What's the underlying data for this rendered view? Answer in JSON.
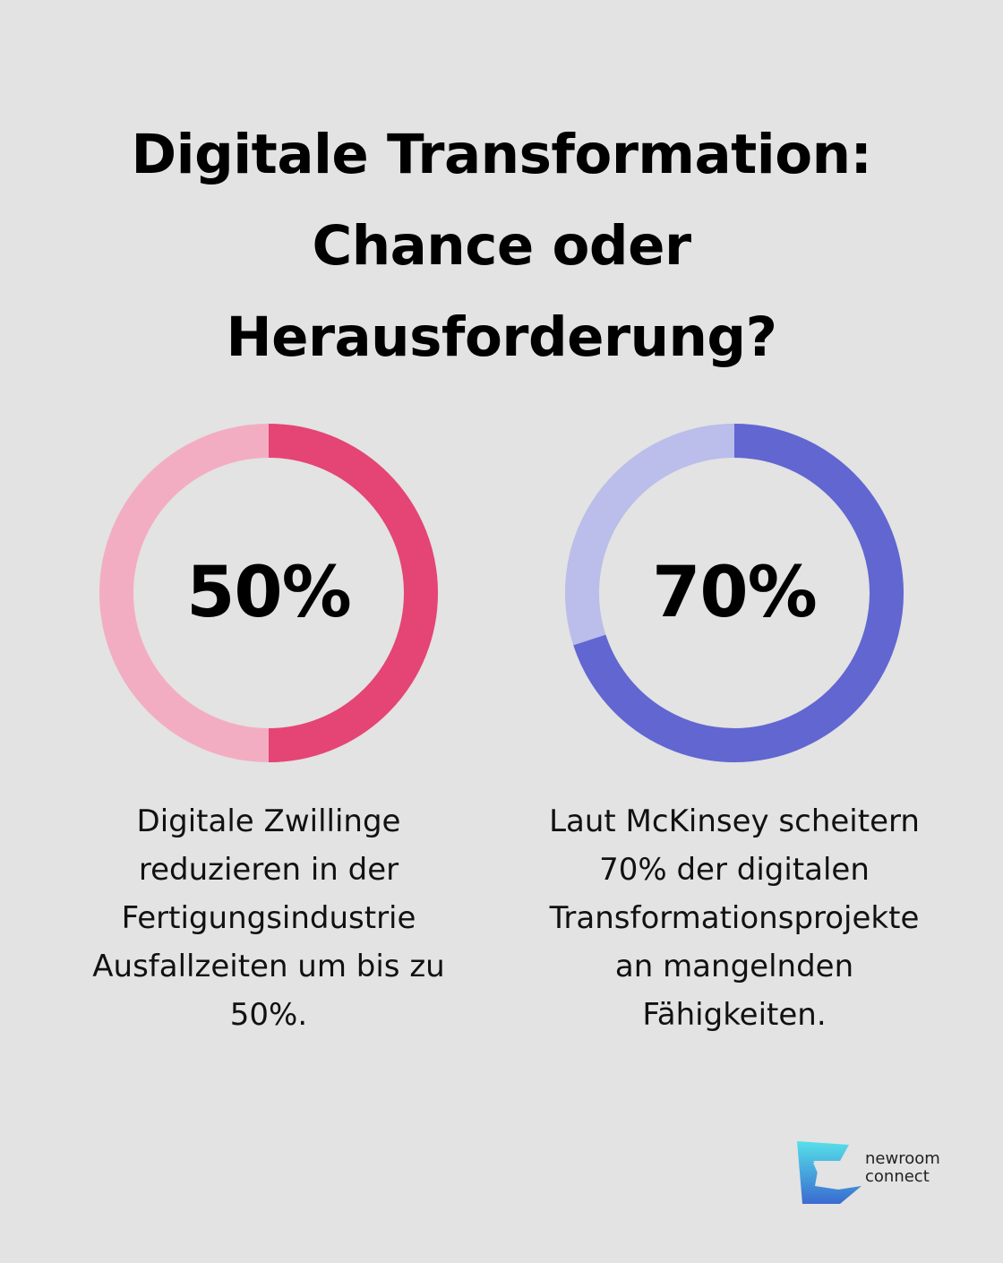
{
  "title": {
    "line1": "Digitale Transformation:",
    "line2": "Chance oder",
    "line3": "Herausforderung?"
  },
  "chart_data": [
    {
      "type": "pie",
      "variant": "donut",
      "value": 50,
      "max": 100,
      "label": "50%",
      "colors": {
        "filled": "#e44575",
        "track": "#f3adc2"
      },
      "caption": [
        "Digitale Zwillinge",
        "reduzieren in der",
        "Fertigungsindustrie",
        "Ausfallzeiten um bis zu",
        "50%."
      ]
    },
    {
      "type": "pie",
      "variant": "donut",
      "value": 70,
      "max": 100,
      "label": "70%",
      "colors": {
        "filled": "#6266d1",
        "track": "#bbbdea"
      },
      "caption": [
        "Laut McKinsey scheitern",
        "70% der digitalen",
        "Transformationsprojekte",
        "an mangelnden",
        "Fähigkeiten."
      ]
    }
  ],
  "logo": {
    "line1": "newroom",
    "line2": "connect",
    "colors": {
      "top": "#56e0ea",
      "bottom": "#3a6bd0"
    }
  }
}
